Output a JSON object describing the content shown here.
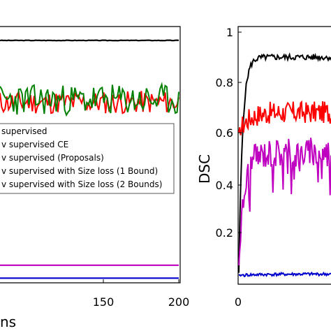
{
  "chart_data": [
    {
      "type": "line",
      "panel": "left (cropped)",
      "x_visible_range": [
        95,
        200
      ],
      "x_ticks": [
        "150",
        "200"
      ],
      "xlabel_fragment": "ns",
      "grid": false,
      "legend": {
        "placement": "center-left",
        "entries": [
          {
            "text": "supervised",
            "color": "#000000"
          },
          {
            "text": "v supervised CE",
            "color": "#0000cc"
          },
          {
            "text": "v supervised (Proposals)",
            "color": "#c000c0"
          },
          {
            "text": "v supervised with Size loss (1 Bound)",
            "color": "#ff0000"
          },
          {
            "text": "v supervised with Size loss (2 Bounds)",
            "color": "#008000"
          }
        ]
      },
      "series": [
        {
          "color": "#000000",
          "level": 0.93
        },
        {
          "color": "#ff0000",
          "level": 0.69,
          "noise": 0.045,
          "seed": 11
        },
        {
          "color": "#008000",
          "level": 0.7,
          "noise": 0.06,
          "seed": 23
        },
        {
          "color": "#c000c0",
          "level": 0.06
        },
        {
          "color": "#0000cc",
          "level": 0.01
        }
      ]
    },
    {
      "type": "line",
      "panel": "right (cropped)",
      "ylabel": "DSC",
      "ylim": [
        0,
        1
      ],
      "y_ticks": [
        "0.2",
        "0.4",
        "0.6",
        "0.8",
        "1"
      ],
      "x_ticks": [
        "0"
      ],
      "grid": false,
      "series": [
        {
          "color": "#000000",
          "start": 0.04,
          "plateau": 0.9,
          "rise": 4,
          "noise": 0.012,
          "seed": 5
        },
        {
          "color": "#ff0000",
          "start": 0.6,
          "plateau": 0.68,
          "rise": 10,
          "noise": 0.045,
          "seed": 17
        },
        {
          "color": "#c000c0",
          "start": 0.07,
          "plateau": 0.52,
          "rise": 6,
          "noise": 0.06,
          "seed": 31
        },
        {
          "color": "#0000cc",
          "start": 0.03,
          "plateau": 0.035,
          "rise": 30,
          "noise": 0.006,
          "seed": 41
        }
      ]
    }
  ]
}
